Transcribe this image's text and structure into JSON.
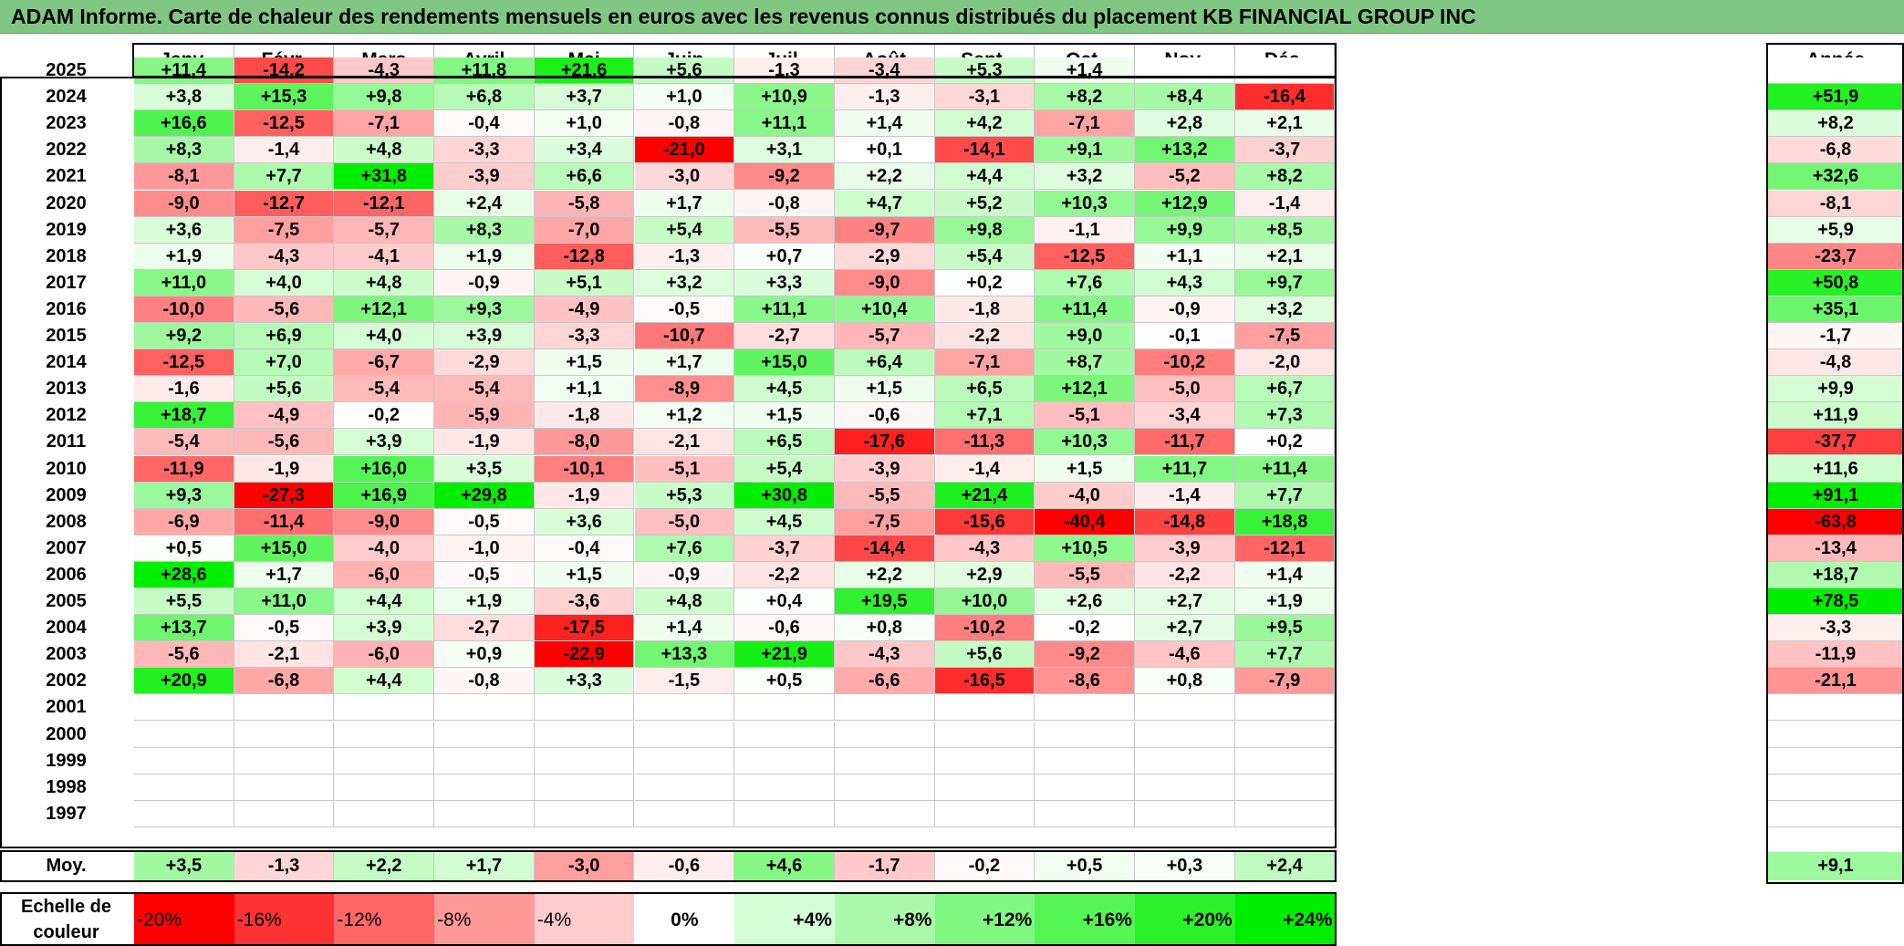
{
  "title": "ADAM Informe. Carte de chaleur des rendements mensuels en euros avec les revenus connus distribués du placement KB FINANCIAL GROUP INC",
  "months": [
    "Janv.",
    "Févr.",
    "Mars",
    "Avril",
    "Mai",
    "Juin",
    "Juil.",
    "Août",
    "Sept.",
    "Oct.",
    "Nov.",
    "Déc."
  ],
  "year_header": "Année",
  "avg_label": "Moy.",
  "scale_label": "Echelle de couleur",
  "chart_data": {
    "type": "heatmap",
    "title": "ADAM Informe. Carte de chaleur des rendements mensuels en euros avec les revenus connus distribués du placement KB FINANCIAL GROUP INC",
    "columns": [
      "Janv.",
      "Févr.",
      "Mars",
      "Avril",
      "Mai",
      "Juin",
      "Juil.",
      "Août",
      "Sept.",
      "Oct.",
      "Nov.",
      "Déc.",
      "Année"
    ],
    "rows": [
      {
        "year": "2025",
        "values": [
          "+11,4",
          "-14,2",
          "-4,3",
          "+11,8",
          "+21,6",
          "+5,6",
          "-1,3",
          "-3,4",
          "+5,3",
          "+1,4",
          "",
          ""
        ],
        "annual": ""
      },
      {
        "year": "2024",
        "values": [
          "+3,8",
          "+15,3",
          "+9,8",
          "+6,8",
          "+3,7",
          "+1,0",
          "+10,9",
          "-1,3",
          "-3,1",
          "+8,2",
          "+8,4",
          "-16,4"
        ],
        "annual": "+51,9"
      },
      {
        "year": "2023",
        "values": [
          "+16,6",
          "-12,5",
          "-7,1",
          "-0,4",
          "+1,0",
          "-0,8",
          "+11,1",
          "+1,4",
          "+4,2",
          "-7,1",
          "+2,8",
          "+2,1"
        ],
        "annual": "+8,2"
      },
      {
        "year": "2022",
        "values": [
          "+8,3",
          "-1,4",
          "+4,8",
          "-3,3",
          "+3,4",
          "-21,0",
          "+3,1",
          "+0,1",
          "-14,1",
          "+9,1",
          "+13,2",
          "-3,7"
        ],
        "annual": "-6,8"
      },
      {
        "year": "2021",
        "values": [
          "-8,1",
          "+7,7",
          "+31,8",
          "-3,9",
          "+6,6",
          "-3,0",
          "-9,2",
          "+2,2",
          "+4,4",
          "+3,2",
          "-5,2",
          "+8,2"
        ],
        "annual": "+32,6"
      },
      {
        "year": "2020",
        "values": [
          "-9,0",
          "-12,7",
          "-12,1",
          "+2,4",
          "-5,8",
          "+1,7",
          "-0,8",
          "+4,7",
          "+5,2",
          "+10,3",
          "+12,9",
          "-1,4"
        ],
        "annual": "-8,1"
      },
      {
        "year": "2019",
        "values": [
          "+3,6",
          "-7,5",
          "-5,7",
          "+8,3",
          "-7,0",
          "+5,4",
          "-5,5",
          "-9,7",
          "+9,8",
          "-1,1",
          "+9,9",
          "+8,5"
        ],
        "annual": "+5,9"
      },
      {
        "year": "2018",
        "values": [
          "+1,9",
          "-4,3",
          "-4,1",
          "+1,9",
          "-12,8",
          "-1,3",
          "+0,7",
          "-2,9",
          "+5,4",
          "-12,5",
          "+1,1",
          "+2,1"
        ],
        "annual": "-23,7"
      },
      {
        "year": "2017",
        "values": [
          "+11,0",
          "+4,0",
          "+4,8",
          "-0,9",
          "+5,1",
          "+3,2",
          "+3,3",
          "-9,0",
          "+0,2",
          "+7,6",
          "+4,3",
          "+9,7"
        ],
        "annual": "+50,8"
      },
      {
        "year": "2016",
        "values": [
          "-10,0",
          "-5,6",
          "+12,1",
          "+9,3",
          "-4,9",
          "-0,5",
          "+11,1",
          "+10,4",
          "-1,8",
          "+11,4",
          "-0,9",
          "+3,2"
        ],
        "annual": "+35,1"
      },
      {
        "year": "2015",
        "values": [
          "+9,2",
          "+6,9",
          "+4,0",
          "+3,9",
          "-3,3",
          "-10,7",
          "-2,7",
          "-5,7",
          "-2,2",
          "+9,0",
          "-0,1",
          "-7,5"
        ],
        "annual": "-1,7"
      },
      {
        "year": "2014",
        "values": [
          "-12,5",
          "+7,0",
          "-6,7",
          "-2,9",
          "+1,5",
          "+1,7",
          "+15,0",
          "+6,4",
          "-7,1",
          "+8,7",
          "-10,2",
          "-2,0"
        ],
        "annual": "-4,8"
      },
      {
        "year": "2013",
        "values": [
          "-1,6",
          "+5,6",
          "-5,4",
          "-5,4",
          "+1,1",
          "-8,9",
          "+4,5",
          "+1,5",
          "+6,5",
          "+12,1",
          "-5,0",
          "+6,7"
        ],
        "annual": "+9,9"
      },
      {
        "year": "2012",
        "values": [
          "+18,7",
          "-4,9",
          "-0,2",
          "-5,9",
          "-1,8",
          "+1,2",
          "+1,5",
          "-0,6",
          "+7,1",
          "-5,1",
          "-3,4",
          "+7,3"
        ],
        "annual": "+11,9"
      },
      {
        "year": "2011",
        "values": [
          "-5,4",
          "-5,6",
          "+3,9",
          "-1,9",
          "-8,0",
          "-2,1",
          "+6,5",
          "-17,6",
          "-11,3",
          "+10,3",
          "-11,7",
          "+0,2"
        ],
        "annual": "-37,7"
      },
      {
        "year": "2010",
        "values": [
          "-11,9",
          "-1,9",
          "+16,0",
          "+3,5",
          "-10,1",
          "-5,1",
          "+5,4",
          "-3,9",
          "-1,4",
          "+1,5",
          "+11,7",
          "+11,4"
        ],
        "annual": "+11,6"
      },
      {
        "year": "2009",
        "values": [
          "+9,3",
          "-27,3",
          "+16,9",
          "+29,8",
          "-1,9",
          "+5,3",
          "+30,8",
          "-5,5",
          "+21,4",
          "-4,0",
          "-1,4",
          "+7,7"
        ],
        "annual": "+91,1"
      },
      {
        "year": "2008",
        "values": [
          "-6,9",
          "-11,4",
          "-9,0",
          "-0,5",
          "+3,6",
          "-5,0",
          "+4,5",
          "-7,5",
          "-15,6",
          "-40,4",
          "-14,8",
          "+18,8"
        ],
        "annual": "-63,8"
      },
      {
        "year": "2007",
        "values": [
          "+0,5",
          "+15,0",
          "-4,0",
          "-1,0",
          "-0,4",
          "+7,6",
          "-3,7",
          "-14,4",
          "-4,3",
          "+10,5",
          "-3,9",
          "-12,1"
        ],
        "annual": "-13,4"
      },
      {
        "year": "2006",
        "values": [
          "+28,6",
          "+1,7",
          "-6,0",
          "-0,5",
          "+1,5",
          "-0,9",
          "-2,2",
          "+2,2",
          "+2,9",
          "-5,5",
          "-2,2",
          "+1,4"
        ],
        "annual": "+18,7"
      },
      {
        "year": "2005",
        "values": [
          "+5,5",
          "+11,0",
          "+4,4",
          "+1,9",
          "-3,6",
          "+4,8",
          "+0,4",
          "+19,5",
          "+10,0",
          "+2,6",
          "+2,7",
          "+1,9"
        ],
        "annual": "+78,5"
      },
      {
        "year": "2004",
        "values": [
          "+13,7",
          "-0,5",
          "+3,9",
          "-2,7",
          "-17,5",
          "+1,4",
          "-0,6",
          "+0,8",
          "-10,2",
          "-0,2",
          "+2,7",
          "+9,5"
        ],
        "annual": "-3,3"
      },
      {
        "year": "2003",
        "values": [
          "-5,6",
          "-2,1",
          "-6,0",
          "+0,9",
          "-22,9",
          "+13,3",
          "+21,9",
          "-4,3",
          "+5,6",
          "-9,2",
          "-4,6",
          "+7,7"
        ],
        "annual": "-11,9"
      },
      {
        "year": "2002",
        "values": [
          "+20,9",
          "-6,8",
          "+4,4",
          "-0,8",
          "+3,3",
          "-1,5",
          "+0,5",
          "-6,6",
          "-16,5",
          "-8,6",
          "+0,8",
          "-7,9"
        ],
        "annual": "-21,1"
      },
      {
        "year": "2001",
        "values": [
          "",
          "",
          "",
          "",
          "",
          "",
          "",
          "",
          "",
          "",
          "",
          ""
        ],
        "annual": ""
      },
      {
        "year": "2000",
        "values": [
          "",
          "",
          "",
          "",
          "",
          "",
          "",
          "",
          "",
          "",
          "",
          ""
        ],
        "annual": ""
      },
      {
        "year": "1999",
        "values": [
          "",
          "",
          "",
          "",
          "",
          "",
          "",
          "",
          "",
          "",
          "",
          ""
        ],
        "annual": ""
      },
      {
        "year": "1998",
        "values": [
          "",
          "",
          "",
          "",
          "",
          "",
          "",
          "",
          "",
          "",
          "",
          ""
        ],
        "annual": ""
      },
      {
        "year": "1997",
        "values": [
          "",
          "",
          "",
          "",
          "",
          "",
          "",
          "",
          "",
          "",
          "",
          ""
        ],
        "annual": ""
      }
    ],
    "average": {
      "values": [
        "+3,5",
        "-1,3",
        "+2,2",
        "+1,7",
        "-3,0",
        "-0,6",
        "+4,6",
        "-1,7",
        "-0,2",
        "+0,5",
        "+0,3",
        "+2,4"
      ],
      "annual": "+9,1"
    },
    "scale": [
      "-20%",
      "-16%",
      "-12%",
      "-8%",
      "-4%",
      "0%",
      "+4%",
      "+8%",
      "+12%",
      "+16%",
      "+20%",
      "+24%"
    ],
    "colors": {
      "negative_max": "#ff0000",
      "neutral": "#ffffff",
      "positive_max": "#00ee00",
      "header_bg": "#81c784"
    }
  }
}
